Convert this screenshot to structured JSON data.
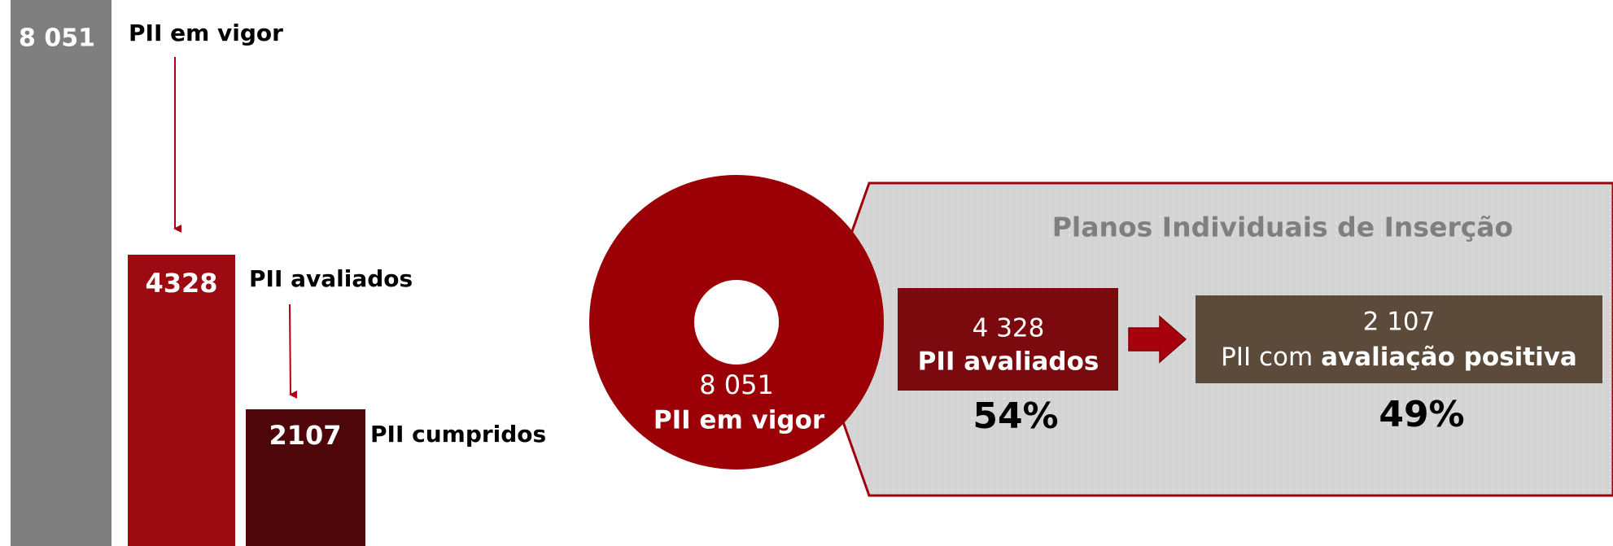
{
  "funnel": {
    "total": {
      "value": "8 051",
      "label": "PII em vigor"
    },
    "evaluated": {
      "value": "4328",
      "label": "PII avaliados"
    },
    "fulfilled": {
      "value": "2107",
      "label": "PII cumpridos"
    }
  },
  "summary": {
    "circle": {
      "value": "8 051",
      "label": "PII em vigor"
    },
    "title": "Planos Individuais de Inserção",
    "evaluated": {
      "value": "4 328",
      "label": "PII avaliados",
      "percent": "54%"
    },
    "positive": {
      "value": "2 107",
      "label_prefix": "PII com",
      "label_bold": "avaliação positiva",
      "percent": "49%"
    }
  }
}
